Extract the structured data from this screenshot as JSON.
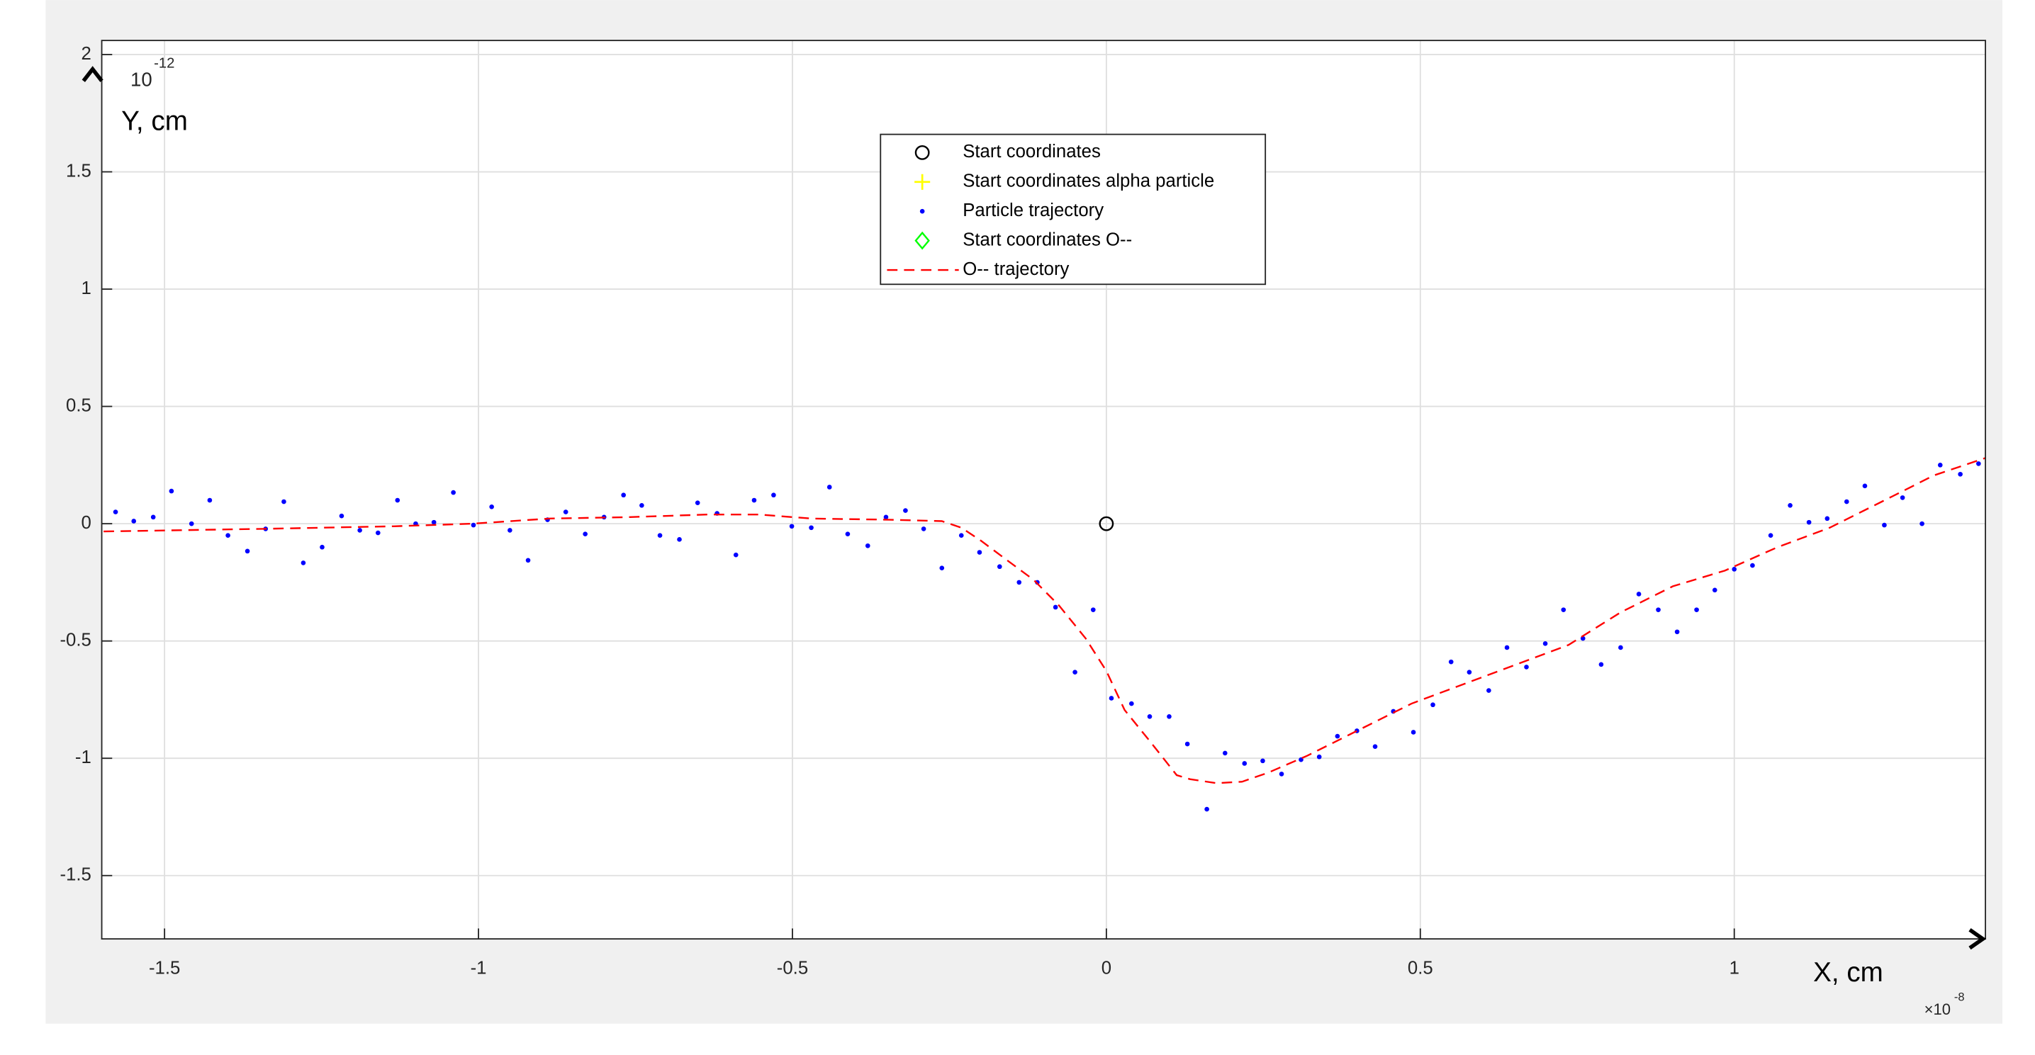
{
  "chart_data": {
    "type": "scatter",
    "xlabel": "X, cm",
    "ylabel": "Y, cm",
    "x_exponent": {
      "base": "×10",
      "power": "-8"
    },
    "y_exponent": {
      "base": "10",
      "power": "-12"
    },
    "xlim": [
      -1.6,
      1.4
    ],
    "ylim": [
      -1.77,
      2.06
    ],
    "xticks": [
      -1.5,
      -1,
      -0.5,
      0,
      0.5,
      1
    ],
    "yticks": [
      -1.5,
      -1,
      -0.5,
      0,
      0.5,
      1,
      1.5,
      2
    ],
    "grid": true,
    "legend": "top-center",
    "series": [
      {
        "name": "Start coordinates",
        "color": "#000000",
        "marker": "circle",
        "x": [
          0
        ],
        "y": [
          0
        ]
      },
      {
        "name": "Start coordinates alpha particle",
        "color": "#ffff00",
        "marker": "plus",
        "x": [],
        "y": []
      },
      {
        "name": "Particle trajectory",
        "color": "#0000ff",
        "marker": "dot",
        "x": [
          -1.578,
          -1.549,
          -1.518,
          -1.489,
          -1.457,
          -1.428,
          -1.399,
          -1.368,
          -1.339,
          -1.31,
          -1.279,
          -1.249,
          -1.218,
          -1.189,
          -1.16,
          -1.129,
          -1.1,
          -1.071,
          -1.04,
          -1.008,
          -0.979,
          -0.95,
          -0.921,
          -0.89,
          -0.861,
          -0.83,
          -0.8,
          -0.769,
          -0.74,
          -0.711,
          -0.68,
          -0.651,
          -0.62,
          -0.59,
          -0.561,
          -0.53,
          -0.501,
          -0.47,
          -0.441,
          -0.412,
          -0.38,
          -0.351,
          -0.32,
          -0.291,
          -0.262,
          -0.231,
          -0.202,
          -0.17,
          -0.139,
          -0.11,
          -0.081,
          -0.05,
          -0.021,
          0.008,
          0.04,
          0.069,
          0.1,
          0.129,
          0.16,
          0.189,
          0.22,
          0.249,
          0.279,
          0.31,
          0.339,
          0.368,
          0.399,
          0.428,
          0.457,
          0.489,
          0.52,
          0.549,
          0.578,
          0.609,
          0.638,
          0.669,
          0.699,
          0.728,
          0.759,
          0.788,
          0.819,
          0.848,
          0.879,
          0.909,
          0.94,
          0.969,
          1.0,
          1.029,
          1.058,
          1.089,
          1.119,
          1.148,
          1.179,
          1.208,
          1.239,
          1.268,
          1.299,
          1.328,
          1.36,
          1.389
        ],
        "y": [
          0.05,
          0.011,
          0.028,
          0.139,
          0,
          0.1,
          -0.05,
          -0.117,
          -0.022,
          0.094,
          -0.167,
          -0.1,
          0.033,
          -0.028,
          -0.039,
          0.1,
          0,
          0.006,
          0.133,
          -0.006,
          0.072,
          -0.028,
          -0.156,
          0.017,
          0.05,
          -0.044,
          0.028,
          0.122,
          0.078,
          -0.05,
          -0.067,
          0.089,
          0.044,
          -0.133,
          0.1,
          0.122,
          -0.011,
          -0.017,
          0.156,
          -0.044,
          -0.094,
          0.028,
          0.056,
          -0.022,
          -0.189,
          -0.05,
          -0.122,
          -0.183,
          -0.25,
          -0.25,
          -0.356,
          -0.633,
          -0.367,
          -0.744,
          -0.767,
          -0.822,
          -0.822,
          -0.939,
          -1.217,
          -0.978,
          -1.022,
          -1.011,
          -1.067,
          -1.006,
          -0.994,
          -0.906,
          -0.883,
          -0.95,
          -0.8,
          -0.889,
          -0.772,
          -0.589,
          -0.633,
          -0.711,
          -0.528,
          -0.611,
          -0.511,
          -0.367,
          -0.489,
          -0.6,
          -0.528,
          -0.3,
          -0.367,
          -0.461,
          -0.367,
          -0.283,
          -0.194,
          -0.178,
          -0.05,
          0.078,
          0.006,
          0.022,
          0.094,
          0.161,
          -0.006,
          0.111,
          0,
          0.25,
          0.211,
          0.256
        ]
      },
      {
        "name": "Start coordinates O--",
        "color": "#00ff00",
        "marker": "diamond",
        "x": [],
        "y": []
      },
      {
        "name": "O-- trajectory",
        "color": "#ff0000",
        "marker": "none",
        "line": "dashed",
        "x": [
          -1.597,
          -1.343,
          -1.135,
          -1.01,
          -0.886,
          -0.761,
          -0.636,
          -0.553,
          -0.47,
          -0.345,
          -0.262,
          -0.231,
          -0.2,
          -0.158,
          -0.116,
          -0.075,
          -0.033,
          0,
          0.029,
          0.071,
          0.112,
          0.133,
          0.175,
          0.216,
          0.258,
          0.32,
          0.403,
          0.486,
          0.57,
          0.653,
          0.736,
          0.819,
          0.902,
          0.985,
          1.069,
          1.152,
          1.235,
          1.318,
          1.4
        ],
        "y": [
          -0.033,
          -0.022,
          -0.011,
          0,
          0.022,
          0.028,
          0.039,
          0.039,
          0.022,
          0.017,
          0.011,
          -0.017,
          -0.072,
          -0.156,
          -0.239,
          -0.35,
          -0.489,
          -0.628,
          -0.794,
          -0.933,
          -1.072,
          -1.089,
          -1.106,
          -1.1,
          -1.061,
          -0.989,
          -0.878,
          -0.767,
          -0.683,
          -0.6,
          -0.517,
          -0.378,
          -0.267,
          -0.2,
          -0.1,
          -0.017,
          0.094,
          0.206,
          0.28
        ]
      }
    ]
  }
}
